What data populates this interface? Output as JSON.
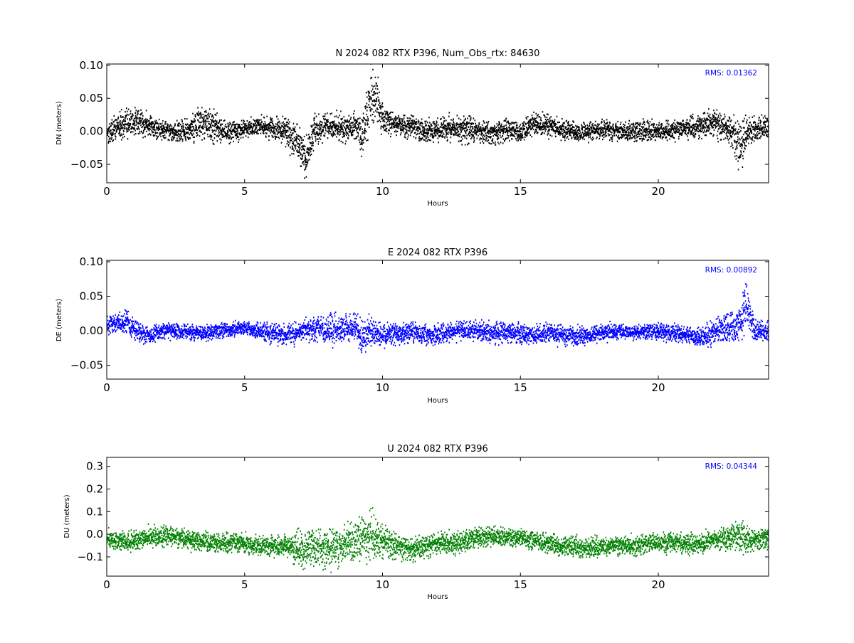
{
  "chart_data": [
    {
      "type": "scatter",
      "component": "N",
      "title": "N 2024 082 RTX  P396, Num_Obs_rtx: 84630",
      "xlabel": "Hours",
      "ylabel": "DN (meters)",
      "xlim": [
        0,
        24
      ],
      "ylim": [
        -0.078,
        0.102
      ],
      "xticks": [
        0,
        5,
        10,
        15,
        20
      ],
      "yticks": [
        -0.05,
        0.0,
        0.05,
        0.1
      ],
      "ytick_labels": [
        "−0.05",
        "0.00",
        "0.05",
        "0.10"
      ],
      "rms_label": "RMS:  0.01362",
      "rms_color": "#0000ff",
      "marker_color": "#000000",
      "grid": false,
      "series": [
        {
          "x": [
            0.0,
            0.5,
            1.0,
            1.5,
            2.0,
            2.5,
            3.0,
            3.5,
            4.0,
            4.5,
            5.0,
            5.5,
            6.0,
            6.5,
            7.0,
            7.2,
            7.5,
            8.0,
            8.5,
            9.0,
            9.2,
            9.5,
            9.7,
            10.0,
            10.5,
            11.0,
            11.5,
            12.0,
            12.5,
            13.0,
            13.5,
            14.0,
            14.5,
            15.0,
            15.5,
            16.0,
            16.5,
            17.0,
            17.5,
            18.0,
            18.5,
            19.0,
            19.5,
            20.0,
            20.5,
            21.0,
            21.5,
            22.0,
            22.5,
            23.0,
            23.2,
            23.5,
            24.0
          ],
          "y": [
            0.0,
            0.01,
            0.015,
            0.01,
            0.002,
            0.0,
            0.005,
            0.015,
            0.005,
            0.0,
            0.005,
            0.01,
            0.005,
            0.0,
            -0.02,
            -0.04,
            0.0,
            0.01,
            0.005,
            0.01,
            -0.01,
            0.04,
            0.06,
            0.02,
            0.012,
            0.008,
            0.0,
            0.003,
            0.006,
            0.005,
            0.0,
            -0.002,
            0.002,
            0.0,
            0.012,
            0.008,
            0.003,
            0.0,
            0.002,
            0.004,
            0.002,
            0.0,
            0.002,
            0.0,
            0.003,
            0.005,
            0.01,
            0.015,
            0.005,
            -0.02,
            0.0,
            0.005,
            0.005
          ],
          "spread": [
            0.012,
            0.015,
            0.015,
            0.012,
            0.01,
            0.01,
            0.015,
            0.02,
            0.015,
            0.01,
            0.01,
            0.01,
            0.012,
            0.015,
            0.02,
            0.02,
            0.015,
            0.012,
            0.015,
            0.015,
            0.02,
            0.03,
            0.03,
            0.015,
            0.012,
            0.012,
            0.012,
            0.012,
            0.015,
            0.015,
            0.012,
            0.012,
            0.012,
            0.01,
            0.012,
            0.012,
            0.012,
            0.01,
            0.01,
            0.01,
            0.01,
            0.01,
            0.01,
            0.01,
            0.01,
            0.01,
            0.012,
            0.015,
            0.015,
            0.03,
            0.015,
            0.012,
            0.012
          ]
        }
      ]
    },
    {
      "type": "scatter",
      "component": "E",
      "title": "E 2024 082 RTX  P396",
      "xlabel": "Hours",
      "ylabel": "DE (meters)",
      "xlim": [
        0,
        24
      ],
      "ylim": [
        -0.07,
        0.102
      ],
      "xticks": [
        0,
        5,
        10,
        15,
        20
      ],
      "yticks": [
        -0.05,
        0.0,
        0.05,
        0.1
      ],
      "ytick_labels": [
        "−0.05",
        "0.00",
        "0.05",
        "0.10"
      ],
      "rms_label": "RMS:  0.00892",
      "rms_color": "#0000ff",
      "marker_color": "#0000ff",
      "grid": false,
      "series": [
        {
          "x": [
            0.0,
            0.5,
            0.7,
            1.0,
            1.5,
            2.0,
            2.5,
            3.0,
            3.5,
            4.0,
            4.5,
            5.0,
            5.5,
            6.0,
            6.5,
            7.0,
            7.5,
            8.0,
            8.5,
            9.0,
            9.2,
            9.5,
            10.0,
            10.5,
            11.0,
            11.5,
            12.0,
            12.5,
            13.0,
            13.5,
            14.0,
            14.5,
            15.0,
            15.5,
            16.0,
            16.5,
            17.0,
            17.5,
            18.0,
            18.5,
            19.0,
            19.5,
            20.0,
            20.5,
            21.0,
            21.5,
            22.0,
            22.5,
            23.0,
            23.1,
            23.5,
            24.0
          ],
          "y": [
            0.01,
            0.01,
            0.015,
            0.0,
            -0.005,
            0.002,
            0.0,
            0.0,
            -0.002,
            0.0,
            0.003,
            0.005,
            0.0,
            -0.002,
            -0.005,
            0.0,
            0.003,
            0.002,
            0.005,
            0.005,
            -0.01,
            0.0,
            -0.005,
            -0.003,
            0.0,
            -0.005,
            -0.005,
            0.0,
            0.002,
            0.0,
            -0.002,
            0.0,
            -0.003,
            -0.005,
            0.0,
            -0.005,
            -0.008,
            -0.005,
            -0.002,
            0.0,
            -0.002,
            0.0,
            0.0,
            -0.002,
            -0.005,
            -0.01,
            0.0,
            0.005,
            0.01,
            0.04,
            0.0,
            0.0
          ],
          "spread": [
            0.01,
            0.01,
            0.012,
            0.01,
            0.008,
            0.008,
            0.008,
            0.008,
            0.008,
            0.008,
            0.008,
            0.008,
            0.008,
            0.01,
            0.01,
            0.01,
            0.012,
            0.015,
            0.015,
            0.015,
            0.02,
            0.015,
            0.012,
            0.01,
            0.01,
            0.01,
            0.01,
            0.01,
            0.01,
            0.01,
            0.01,
            0.01,
            0.01,
            0.01,
            0.01,
            0.01,
            0.01,
            0.008,
            0.008,
            0.008,
            0.008,
            0.008,
            0.008,
            0.008,
            0.008,
            0.01,
            0.012,
            0.015,
            0.015,
            0.03,
            0.01,
            0.01
          ]
        }
      ]
    },
    {
      "type": "scatter",
      "component": "U",
      "title": "U 2024 082 RTX  P396",
      "xlabel": "Hours",
      "ylabel": "DU (meters)",
      "xlim": [
        0,
        24
      ],
      "ylim": [
        -0.185,
        0.34
      ],
      "xticks": [
        0,
        5,
        10,
        15,
        20
      ],
      "yticks": [
        -0.1,
        0.0,
        0.1,
        0.2,
        0.3
      ],
      "ytick_labels": [
        "−0.1",
        "0.0",
        "0.1",
        "0.2",
        "0.3"
      ],
      "rms_label": "RMS:  0.04344",
      "rms_color": "#0000ff",
      "marker_color": "#008000",
      "grid": false,
      "series": [
        {
          "x": [
            0.0,
            0.5,
            1.0,
            1.5,
            2.0,
            2.5,
            3.0,
            3.5,
            4.0,
            4.5,
            5.0,
            5.5,
            6.0,
            6.5,
            7.0,
            7.5,
            8.0,
            8.5,
            9.0,
            9.5,
            9.8,
            10.0,
            10.5,
            11.0,
            11.5,
            12.0,
            12.5,
            13.0,
            13.5,
            14.0,
            14.5,
            15.0,
            15.5,
            16.0,
            16.5,
            17.0,
            17.5,
            18.0,
            18.5,
            19.0,
            19.5,
            20.0,
            20.5,
            21.0,
            21.5,
            22.0,
            22.5,
            23.0,
            23.2,
            23.5,
            24.0
          ],
          "y": [
            -0.02,
            -0.03,
            -0.02,
            -0.01,
            -0.005,
            -0.01,
            -0.02,
            -0.03,
            -0.04,
            -0.03,
            -0.04,
            -0.05,
            -0.05,
            -0.05,
            -0.06,
            -0.05,
            -0.06,
            -0.05,
            -0.03,
            0.0,
            -0.02,
            -0.03,
            -0.05,
            -0.06,
            -0.05,
            -0.04,
            -0.04,
            -0.02,
            -0.01,
            -0.01,
            -0.01,
            -0.01,
            -0.03,
            -0.04,
            -0.05,
            -0.05,
            -0.06,
            -0.05,
            -0.05,
            -0.05,
            -0.04,
            -0.03,
            -0.03,
            -0.04,
            -0.04,
            -0.02,
            -0.01,
            0.0,
            -0.02,
            -0.02,
            -0.02
          ],
          "spread": [
            0.03,
            0.03,
            0.03,
            0.03,
            0.03,
            0.03,
            0.03,
            0.03,
            0.03,
            0.03,
            0.03,
            0.03,
            0.03,
            0.03,
            0.05,
            0.06,
            0.06,
            0.06,
            0.06,
            0.07,
            0.07,
            0.05,
            0.04,
            0.035,
            0.035,
            0.035,
            0.035,
            0.03,
            0.03,
            0.03,
            0.03,
            0.03,
            0.03,
            0.03,
            0.03,
            0.03,
            0.03,
            0.03,
            0.03,
            0.03,
            0.03,
            0.03,
            0.03,
            0.03,
            0.03,
            0.03,
            0.035,
            0.05,
            0.04,
            0.035,
            0.035
          ]
        }
      ]
    }
  ]
}
